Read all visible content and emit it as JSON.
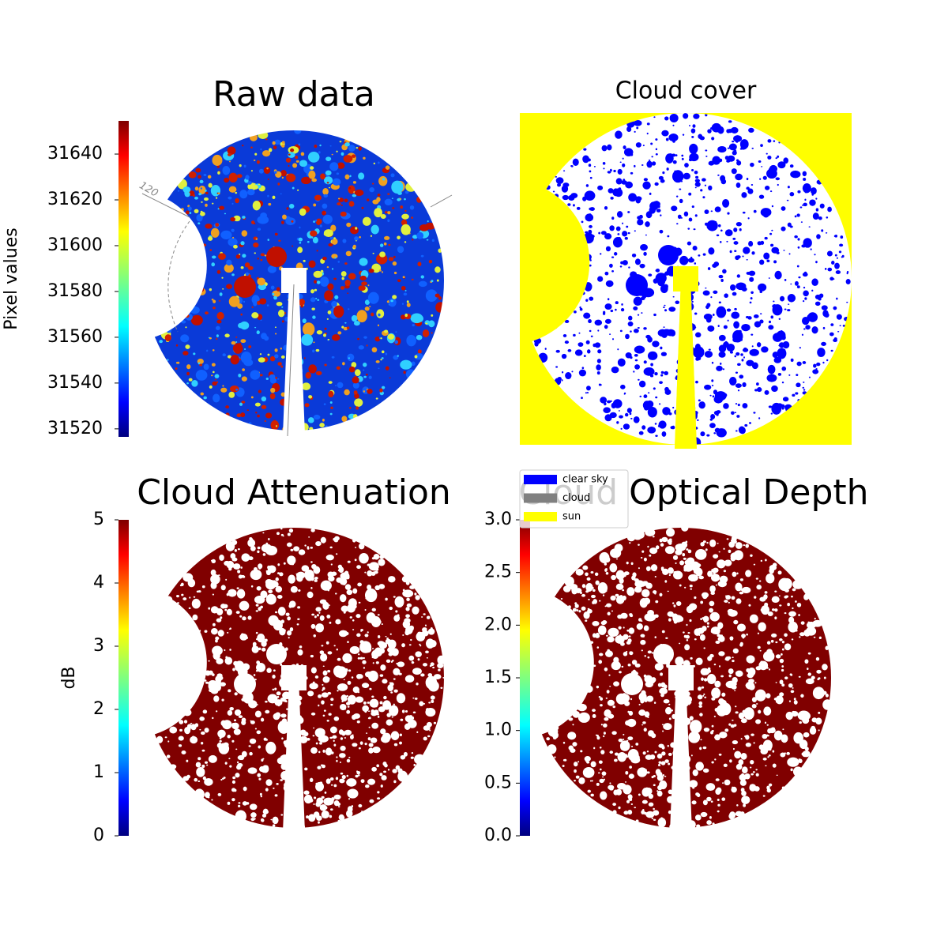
{
  "chart_data": [
    {
      "type": "image",
      "title": "Raw data",
      "colormap": "jet",
      "clabel": "Pixel values",
      "clim": [
        31516.5,
        31654.5
      ],
      "cticks": [
        31520,
        31540,
        31560,
        31580,
        31600,
        31620,
        31640
      ],
      "annotation": "120"
    },
    {
      "type": "categorical-image",
      "title": "Cloud cover",
      "legend": [
        {
          "name": "clear sky",
          "color": "#0000ff"
        },
        {
          "name": "cloud",
          "color": "#808080"
        },
        {
          "name": "sun",
          "color": "#ffff00"
        }
      ]
    },
    {
      "type": "image",
      "title": "Cloud Attenuation",
      "colormap": "jet",
      "clabel": "dB",
      "clim": [
        0,
        5
      ],
      "cticks": [
        0,
        1,
        2,
        3,
        4,
        5
      ]
    },
    {
      "type": "image",
      "title": "Cloud Optical Depth",
      "colormap": "jet",
      "clim": [
        0,
        3
      ],
      "cticks": [
        {
          "value": 0,
          "label": "0.0"
        },
        {
          "value": 0.5,
          "label": "0.5"
        },
        {
          "value": 1,
          "label": "1.0"
        },
        {
          "value": 1.5,
          "label": "1.5"
        },
        {
          "value": 2,
          "label": "2.0"
        },
        {
          "value": 2.5,
          "label": "2.5"
        },
        {
          "value": 3,
          "label": "3.0"
        }
      ]
    }
  ]
}
